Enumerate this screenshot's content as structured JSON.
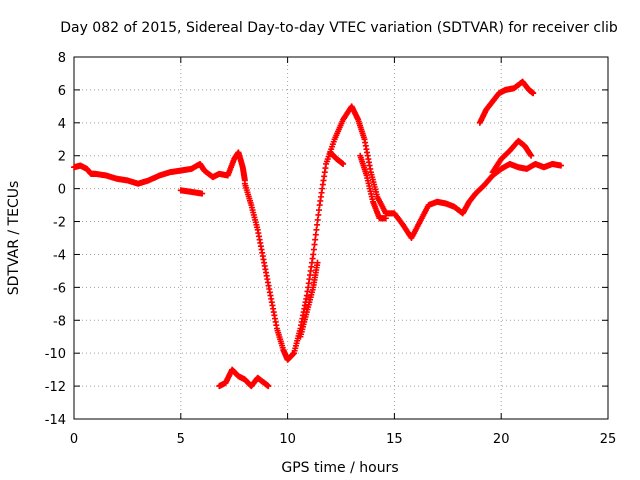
{
  "chart_data": {
    "type": "scatter",
    "title": "Day 082 of 2015, Sidereal Day-to-day VTEC variation (SDTVAR) for receiver clib",
    "xlabel": "GPS time / hours",
    "ylabel": "SDTVAR / TECUs",
    "xlim": [
      0,
      25
    ],
    "ylim": [
      -14,
      8
    ],
    "xticks": [
      "0",
      "5",
      "10",
      "15",
      "20",
      "25"
    ],
    "yticks": [
      "-14",
      "-12",
      "-10",
      "-8",
      "-6",
      "-4",
      "-2",
      "0",
      "2",
      "4",
      "6",
      "8"
    ],
    "grid": true,
    "marker": "+",
    "color": "#ff0000",
    "series": [
      {
        "points": [
          [
            0,
            1.3
          ],
          [
            0.3,
            1.4
          ],
          [
            0.6,
            1.2
          ],
          [
            0.8,
            0.9
          ],
          [
            1.0,
            0.9
          ],
          [
            1.5,
            0.8
          ],
          [
            2.0,
            0.6
          ],
          [
            2.5,
            0.5
          ],
          [
            3.0,
            0.3
          ],
          [
            3.5,
            0.5
          ],
          [
            4.0,
            0.8
          ],
          [
            4.5,
            1.0
          ],
          [
            5.0,
            1.1
          ],
          [
            5.5,
            1.2
          ],
          [
            5.9,
            1.5
          ],
          [
            6.1,
            1.1
          ],
          [
            6.5,
            0.7
          ],
          [
            6.8,
            0.9
          ],
          [
            7.2,
            0.8
          ],
          [
            7.5,
            1.8
          ],
          [
            7.7,
            2.2
          ],
          [
            7.9,
            1.3
          ],
          [
            8.0,
            0.5
          ]
        ]
      },
      {
        "points": [
          [
            5.0,
            -0.1
          ],
          [
            5.5,
            -0.2
          ],
          [
            6.0,
            -0.3
          ]
        ]
      },
      {
        "points": [
          [
            6.8,
            -12.0
          ],
          [
            7.1,
            -11.8
          ],
          [
            7.4,
            -11.0
          ],
          [
            7.7,
            -11.4
          ],
          [
            8.0,
            -11.6
          ],
          [
            8.3,
            -12.0
          ],
          [
            8.6,
            -11.5
          ],
          [
            8.9,
            -11.8
          ],
          [
            9.1,
            -12.0
          ]
        ]
      },
      {
        "points": [
          [
            8.0,
            0.3
          ],
          [
            8.3,
            -1.0
          ],
          [
            8.6,
            -2.5
          ],
          [
            8.9,
            -4.5
          ],
          [
            9.2,
            -6.5
          ],
          [
            9.5,
            -8.5
          ],
          [
            9.8,
            -9.8
          ],
          [
            10.0,
            -10.4
          ],
          [
            10.3,
            -10.0
          ],
          [
            10.6,
            -8.5
          ],
          [
            10.9,
            -6.5
          ],
          [
            11.2,
            -4.0
          ],
          [
            11.5,
            -1.0
          ],
          [
            11.8,
            1.5
          ],
          [
            12.2,
            3.0
          ],
          [
            12.6,
            4.2
          ],
          [
            13.0,
            5.0
          ],
          [
            13.3,
            4.2
          ],
          [
            13.6,
            3.0
          ],
          [
            13.9,
            1.0
          ],
          [
            14.2,
            -0.5
          ],
          [
            14.6,
            -1.5
          ],
          [
            15.0,
            -1.5
          ],
          [
            15.4,
            -2.2
          ],
          [
            15.8,
            -3.0
          ],
          [
            16.2,
            -2.0
          ],
          [
            16.6,
            -1.0
          ],
          [
            17.0,
            -0.8
          ],
          [
            17.4,
            -0.9
          ],
          [
            17.8,
            -1.1
          ],
          [
            18.2,
            -1.5
          ],
          [
            18.5,
            -0.8
          ],
          [
            18.8,
            -0.3
          ],
          [
            19.2,
            0.2
          ],
          [
            19.6,
            0.8
          ],
          [
            20.0,
            1.2
          ],
          [
            20.4,
            1.5
          ],
          [
            20.8,
            1.3
          ],
          [
            21.2,
            1.2
          ],
          [
            21.6,
            1.5
          ],
          [
            22.0,
            1.3
          ],
          [
            22.4,
            1.5
          ],
          [
            22.8,
            1.4
          ]
        ]
      },
      {
        "points": [
          [
            10.6,
            -9.0
          ],
          [
            10.9,
            -7.5
          ],
          [
            11.2,
            -6.0
          ],
          [
            11.4,
            -4.5
          ]
        ]
      },
      {
        "points": [
          [
            12.0,
            2.2
          ],
          [
            12.3,
            1.8
          ],
          [
            12.6,
            1.5
          ]
        ]
      },
      {
        "points": [
          [
            13.4,
            2.0
          ],
          [
            13.7,
            0.8
          ],
          [
            14.0,
            -0.8
          ],
          [
            14.3,
            -1.8
          ],
          [
            14.6,
            -1.8
          ]
        ]
      },
      {
        "points": [
          [
            19.0,
            4.0
          ],
          [
            19.3,
            4.8
          ],
          [
            19.6,
            5.3
          ],
          [
            19.9,
            5.8
          ],
          [
            20.2,
            6.0
          ],
          [
            20.6,
            6.1
          ],
          [
            21.0,
            6.5
          ],
          [
            21.3,
            6.0
          ],
          [
            21.5,
            5.8
          ]
        ]
      },
      {
        "points": [
          [
            19.6,
            1.0
          ],
          [
            20.0,
            1.8
          ],
          [
            20.4,
            2.3
          ],
          [
            20.8,
            2.9
          ],
          [
            21.1,
            2.6
          ],
          [
            21.4,
            2.0
          ]
        ]
      }
    ]
  }
}
